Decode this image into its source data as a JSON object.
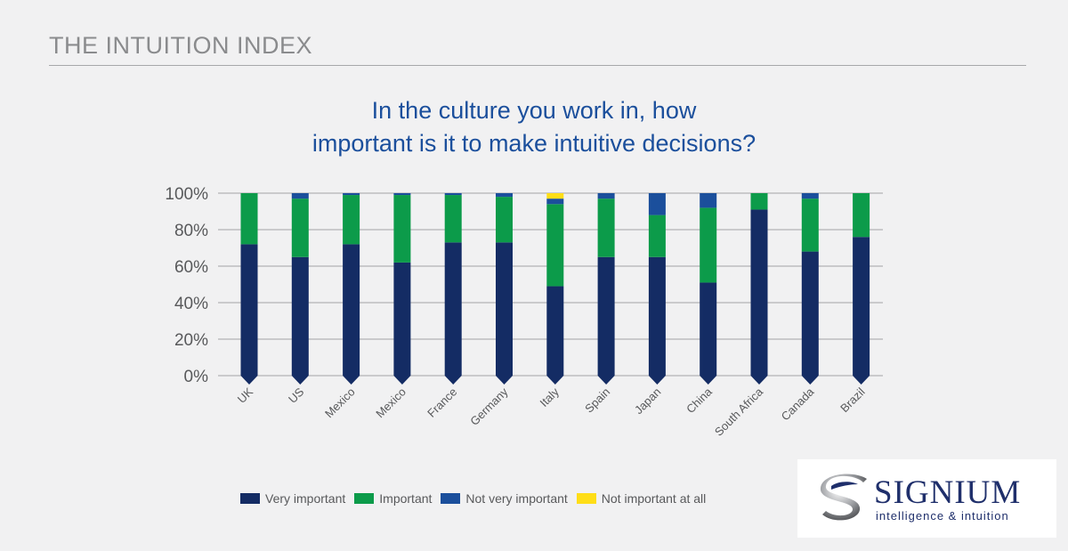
{
  "header": {
    "title": "THE INTUITION INDEX"
  },
  "question": {
    "line1": "In the culture you work in, how",
    "line2": "important is it to make intuitive decisions?"
  },
  "logo": {
    "name": "SIGNIUM",
    "tagline": "intelligence & intuition",
    "icon": "signium-swirl-icon"
  },
  "legend": [
    {
      "label": "Very important",
      "color": "#142c64"
    },
    {
      "label": "Important",
      "color": "#0c9b4a"
    },
    {
      "label": "Not very important",
      "color": "#1b4f9c"
    },
    {
      "label": "Not important at all",
      "color": "#ffde17"
    }
  ],
  "chart_data": {
    "type": "bar",
    "stacked": true,
    "title": "",
    "xlabel": "",
    "ylabel": "",
    "ylim": [
      0,
      100
    ],
    "yticks": [
      "100%",
      "80%",
      "60%",
      "40%",
      "20%",
      "0%"
    ],
    "grid": true,
    "legend_position": "bottom",
    "categories": [
      "UK",
      "US",
      "Mexico",
      "Mexico",
      "France",
      "Germany",
      "Italy",
      "Spain",
      "Japan",
      "China",
      "South Africa",
      "Canada",
      "Brazil"
    ],
    "series": [
      {
        "name": "Very important",
        "color": "#142c64",
        "values": [
          72,
          65,
          72,
          62,
          73,
          73,
          49,
          65,
          65,
          51,
          91,
          68,
          76
        ]
      },
      {
        "name": "Important",
        "color": "#0c9b4a",
        "values": [
          28,
          32,
          27,
          37,
          26,
          25,
          45,
          32,
          23,
          41,
          9,
          29,
          24
        ]
      },
      {
        "name": "Not very important",
        "color": "#1b4f9c",
        "values": [
          0,
          3,
          1,
          1,
          1,
          2,
          3,
          3,
          12,
          8,
          0,
          3,
          0
        ]
      },
      {
        "name": "Not important at all",
        "color": "#ffde17",
        "values": [
          0,
          0,
          0,
          0,
          0,
          0,
          3,
          0,
          0,
          0,
          0,
          0,
          0
        ]
      }
    ]
  }
}
